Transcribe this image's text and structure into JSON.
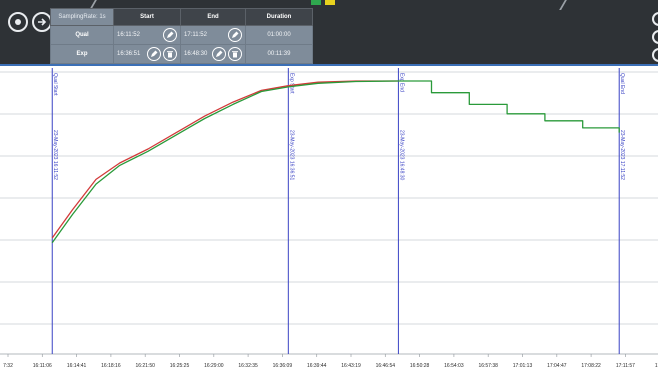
{
  "toolbar": {
    "record_icon": "record-circle-icon",
    "exit_icon": "exit-arrow-icon"
  },
  "session_table": {
    "sampling_rate": "SamplingRate: 1s",
    "headers": {
      "start": "Start",
      "end": "End",
      "duration": "Duration"
    },
    "rows": [
      {
        "label": "Qual",
        "start": "16:11:52",
        "end": "17:11:52",
        "duration": "01:00:00"
      },
      {
        "label": "Exp",
        "start": "16:36:51",
        "end": "16:48:30",
        "duration": "00:11:39"
      }
    ]
  },
  "colors": {
    "topbar": "#2e3236",
    "accent": "#3b6fb6",
    "marker": "#3a43c4",
    "series_red": "#d23a3a",
    "series_green": "#2a9a3a"
  },
  "chart_data": {
    "type": "line",
    "x_ticks": [
      "7:32",
      "16:11:06",
      "16:14:41",
      "16:18:16",
      "16:21:50",
      "16:25:25",
      "16:29:00",
      "16:32:35",
      "16:36:09",
      "16:39:44",
      "16:43:19",
      "16:46:54",
      "16:50:28",
      "16:54:03",
      "16:57:38",
      "17:01:13",
      "17:04:47",
      "17:08:22",
      "17:11:57",
      "17:1"
    ],
    "grid": true,
    "markers": [
      {
        "label": "Qual Start",
        "date": "23-May-2023 16:11:52",
        "x": "16:11:52"
      },
      {
        "label": "Exp Start",
        "date": "23-May-2023 16:36:51",
        "x": "16:36:51"
      },
      {
        "label": "Exp End",
        "date": "23-May-2023 16:48:30",
        "x": "16:48:30"
      },
      {
        "label": "Qual End",
        "date": "23-May-2023 17:11:52",
        "x": "17:11:52"
      }
    ],
    "series": [
      {
        "color": "#d23a3a",
        "points": [
          [
            "16:11:52",
            0.35
          ],
          [
            "16:14:00",
            0.47
          ],
          [
            "16:16:30",
            0.6
          ],
          [
            "16:19:00",
            0.67
          ],
          [
            "16:22:00",
            0.73
          ],
          [
            "16:25:00",
            0.8
          ],
          [
            "16:28:00",
            0.87
          ],
          [
            "16:31:00",
            0.93
          ],
          [
            "16:34:00",
            0.98
          ],
          [
            "16:36:51",
            1.0
          ],
          [
            "16:40:00",
            1.015
          ],
          [
            "16:44:00",
            1.02
          ],
          [
            "16:48:30",
            1.02
          ]
        ]
      },
      {
        "color": "#2a9a3a",
        "points": [
          [
            "16:11:52",
            0.33
          ],
          [
            "16:14:00",
            0.45
          ],
          [
            "16:16:30",
            0.58
          ],
          [
            "16:19:00",
            0.66
          ],
          [
            "16:22:00",
            0.72
          ],
          [
            "16:25:00",
            0.79
          ],
          [
            "16:28:00",
            0.86
          ],
          [
            "16:31:00",
            0.92
          ],
          [
            "16:34:00",
            0.975
          ],
          [
            "16:36:51",
            0.995
          ],
          [
            "16:40:00",
            1.01
          ],
          [
            "16:44:00",
            1.018
          ],
          [
            "16:48:30",
            1.02
          ],
          [
            "16:52:00",
            0.97
          ],
          [
            "16:56:00",
            0.92
          ],
          [
            "17:00:00",
            0.88
          ],
          [
            "17:04:00",
            0.85
          ],
          [
            "17:08:00",
            0.82
          ],
          [
            "17:11:52",
            0.8
          ]
        ]
      }
    ]
  }
}
